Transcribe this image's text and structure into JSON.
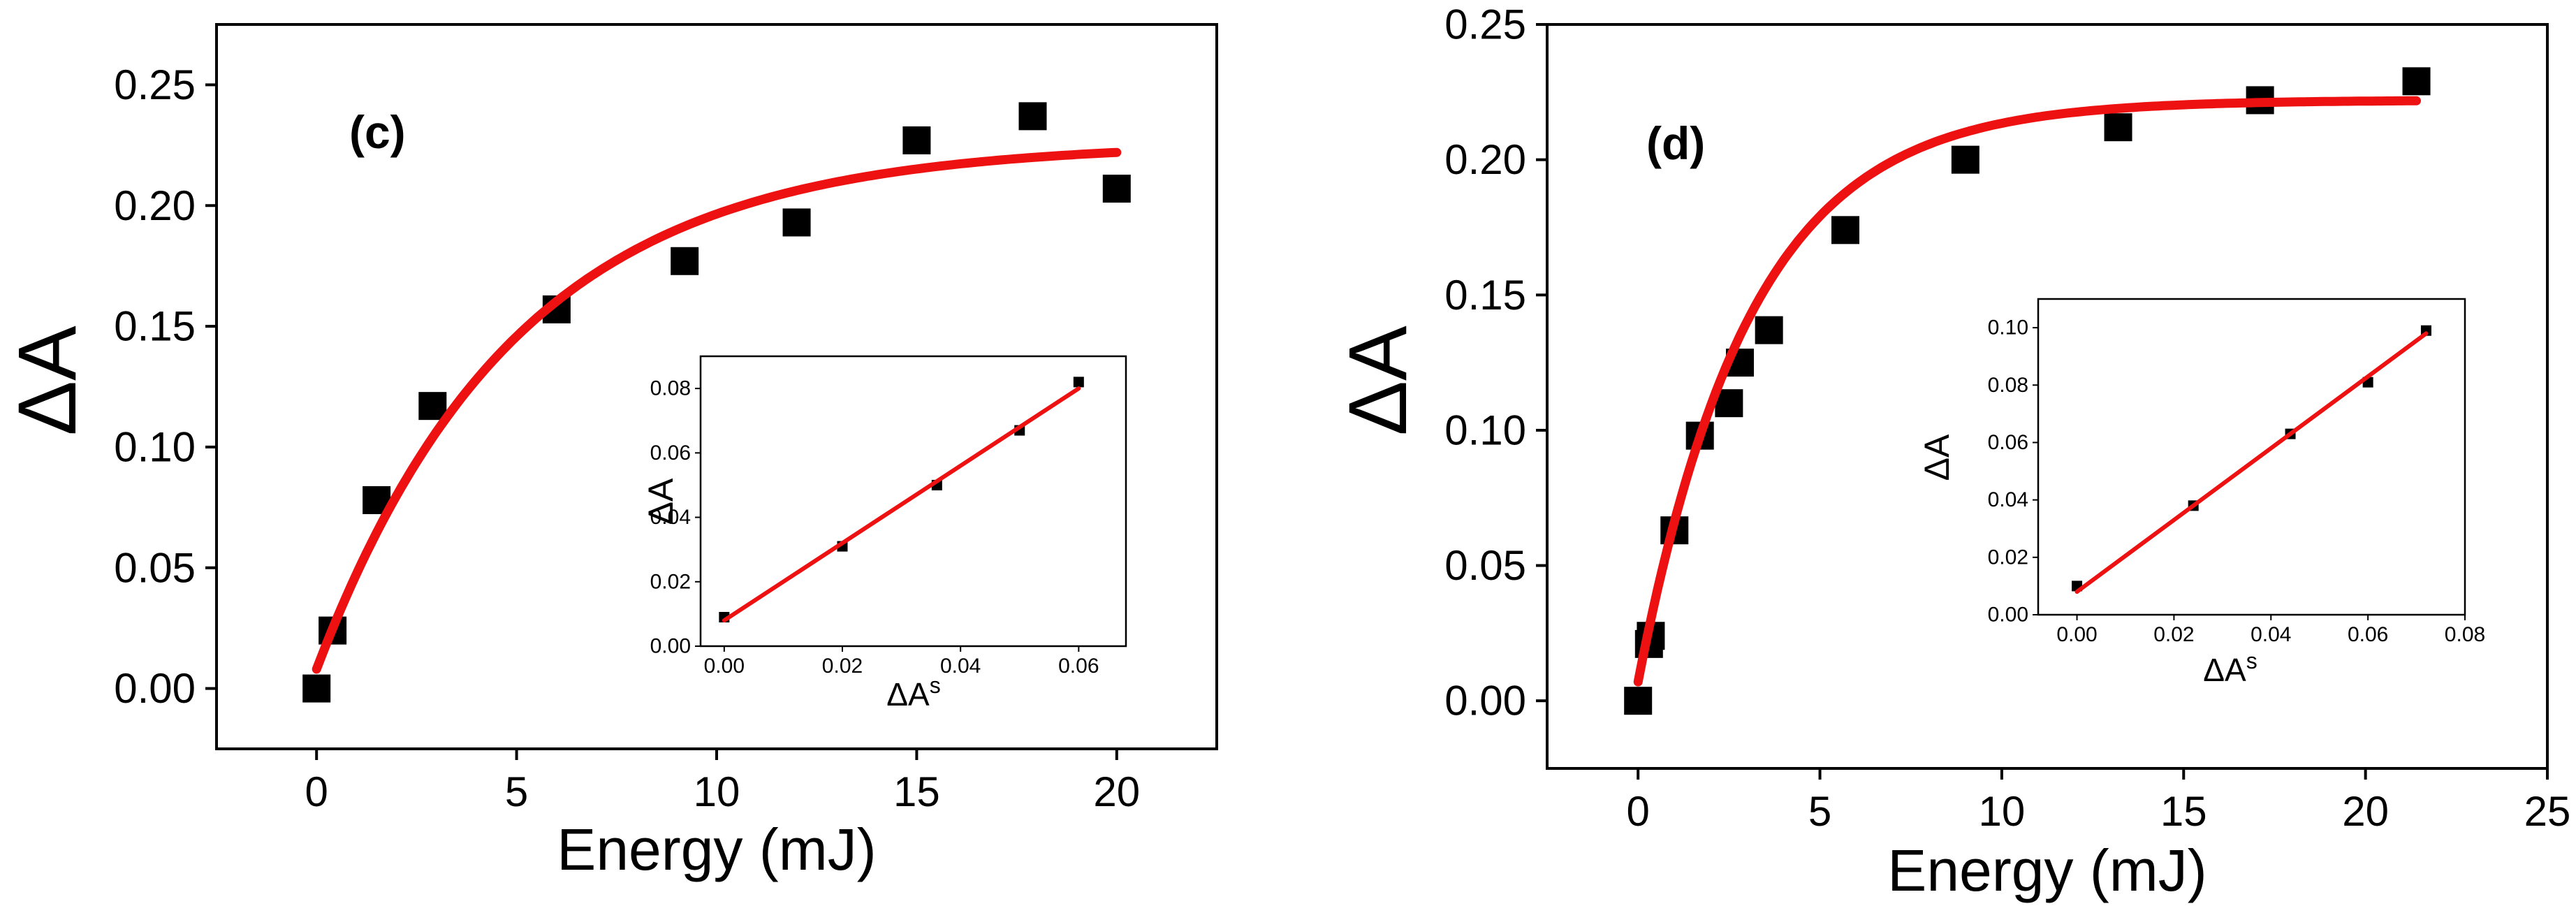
{
  "chart_data": [
    {
      "panel": "c",
      "type": "scatter",
      "title": "(c)",
      "xlabel": "Energy (mJ)",
      "ylabel": "ΔA",
      "xlim": [
        -2.5,
        22.5
      ],
      "ylim": [
        -0.025,
        0.275
      ],
      "xticks": [
        0,
        5,
        10,
        15,
        20
      ],
      "yticks": [
        0.0,
        0.05,
        0.1,
        0.15,
        0.2,
        0.25
      ],
      "xtick_labels": [
        "0",
        "5",
        "10",
        "15",
        "20"
      ],
      "ytick_labels": [
        "0.00",
        "0.05",
        "0.10",
        "0.15",
        "0.20",
        "0.25"
      ],
      "series": [
        {
          "name": "data",
          "x": [
            0,
            0.4,
            1.5,
            2.9,
            6.0,
            9.2,
            12.0,
            15.0,
            17.9,
            20.0
          ],
          "y": [
            0.0,
            0.024,
            0.078,
            0.117,
            0.157,
            0.177,
            0.193,
            0.227,
            0.237,
            0.207
          ],
          "color": "#000000"
        },
        {
          "name": "fit",
          "model": "a*(1-exp(-x/t))+c",
          "params": {
            "a": 0.218,
            "t": 5.0,
            "c": 0.008
          },
          "x_range": [
            0,
            20
          ],
          "color": "#ee1111"
        }
      ],
      "inset": {
        "type": "scatter",
        "xlabel": "ΔA",
        "xlabel_sup": "s",
        "ylabel": "ΔA",
        "xlim": [
          -0.004,
          0.068
        ],
        "ylim": [
          0.0,
          0.09
        ],
        "xticks": [
          0.0,
          0.02,
          0.04,
          0.06
        ],
        "yticks": [
          0.0,
          0.02,
          0.04,
          0.06,
          0.08
        ],
        "xtick_labels": [
          "0.00",
          "0.02",
          "0.04",
          "0.06"
        ],
        "ytick_labels": [
          "0.00",
          "0.02",
          "0.04",
          "0.06",
          "0.08"
        ],
        "series": [
          {
            "name": "data",
            "x": [
              0.0,
              0.02,
              0.036,
              0.05,
              0.06
            ],
            "y": [
              0.009,
              0.031,
              0.05,
              0.067,
              0.082
            ],
            "color": "#000000"
          },
          {
            "name": "fit",
            "x": [
              0.0,
              0.06
            ],
            "y": [
              0.008,
              0.08
            ],
            "color": "#ee1111"
          }
        ]
      }
    },
    {
      "panel": "d",
      "type": "scatter",
      "title": "(d)",
      "xlabel": "Energy (mJ)",
      "ylabel": "ΔA",
      "xlim": [
        -2.5,
        25.0
      ],
      "ylim": [
        -0.025,
        0.25
      ],
      "xticks": [
        0,
        5,
        10,
        15,
        20,
        25
      ],
      "yticks": [
        0.0,
        0.05,
        0.1,
        0.15,
        0.2,
        0.25
      ],
      "xtick_labels": [
        "0",
        "5",
        "10",
        "15",
        "20",
        "25"
      ],
      "ytick_labels": [
        "0.00",
        "0.05",
        "0.10",
        "0.15",
        "0.20",
        "0.25"
      ],
      "series": [
        {
          "name": "data",
          "x": [
            0,
            0.3,
            0.35,
            1.0,
            1.7,
            2.5,
            2.8,
            3.6,
            5.7,
            9.0,
            13.2,
            17.1,
            21.4
          ],
          "y": [
            0.0,
            0.021,
            0.024,
            0.063,
            0.098,
            0.11,
            0.125,
            0.137,
            0.174,
            0.2,
            0.212,
            0.222,
            0.229
          ],
          "color": "#000000"
        },
        {
          "name": "fit",
          "model": "a*(1-exp(-x/t))+c",
          "params": {
            "a": 0.215,
            "t": 3.1,
            "c": 0.007
          },
          "x_range": [
            0,
            21.4
          ],
          "color": "#ee1111"
        }
      ],
      "inset": {
        "type": "scatter",
        "xlabel": "ΔA",
        "xlabel_sup": "s",
        "ylabel": "ΔA",
        "xlim": [
          -0.008,
          0.08
        ],
        "ylim": [
          0.0,
          0.11
        ],
        "xticks": [
          0.0,
          0.02,
          0.04,
          0.06,
          0.08
        ],
        "yticks": [
          0.0,
          0.02,
          0.04,
          0.06,
          0.08,
          0.1
        ],
        "xtick_labels": [
          "0.00",
          "0.02",
          "0.04",
          "0.06",
          "0.08"
        ],
        "ytick_labels": [
          "0.00",
          "0.02",
          "0.04",
          "0.06",
          "0.08",
          "0.10"
        ],
        "series": [
          {
            "name": "data",
            "x": [
              0.0,
              0.024,
              0.044,
              0.06,
              0.072
            ],
            "y": [
              0.01,
              0.038,
              0.063,
              0.081,
              0.099
            ],
            "color": "#000000"
          },
          {
            "name": "fit",
            "x": [
              0.0,
              0.072
            ],
            "y": [
              0.008,
              0.098
            ],
            "color": "#ee1111"
          }
        ]
      }
    }
  ]
}
